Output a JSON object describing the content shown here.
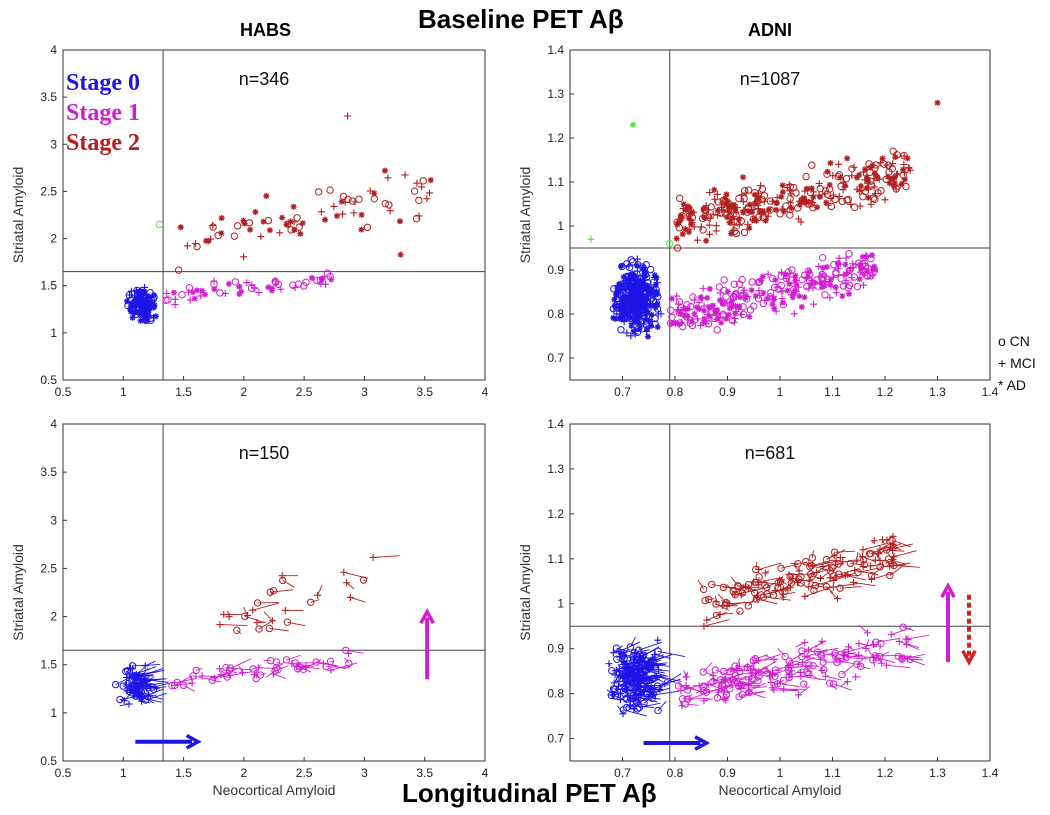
{
  "figure": {
    "top_title": "Baseline PET Aβ",
    "bottom_title": "Longitudinal PET Aβ",
    "column_titles": [
      "HABS",
      "ADNI"
    ]
  },
  "stage_legend": [
    {
      "label": "Stage 0",
      "color": "#1e14e6"
    },
    {
      "label": "Stage 1",
      "color": "#d21ed2"
    },
    {
      "label": "Stage 2",
      "color": "#b41e1e"
    }
  ],
  "diagnosis_legend": [
    "o CN",
    "+ MCI",
    "*  AD"
  ],
  "colors": {
    "stage0": "#1e14e6",
    "stage1": "#d21ed2",
    "stage2": "#b41e1e",
    "excluded": "#5ce04a",
    "threshold": "#444444"
  },
  "chart_data": [
    {
      "id": "habs_baseline",
      "type": "scatter",
      "annotation": "n=346",
      "xlabel": "",
      "ylabel": "Striatal Amyloid",
      "xlim": [
        0.5,
        4
      ],
      "ylim": [
        0.5,
        4
      ],
      "xticks": [
        0.5,
        1,
        1.5,
        2,
        2.5,
        3,
        3.5,
        4
      ],
      "yticks": [
        0.5,
        1,
        1.5,
        2,
        2.5,
        3,
        3.5,
        4
      ],
      "thresholds": {
        "x": 1.33,
        "y": 1.65
      },
      "series": [
        {
          "name": "Stage 0",
          "cluster": {
            "cx": [
              1.0,
              1.32
            ],
            "cy": [
              1.05,
              1.55
            ],
            "count": 150
          }
        },
        {
          "name": "Stage 1",
          "cluster": {
            "cx": [
              1.35,
              2.75
            ],
            "cy": [
              1.3,
              1.65
            ],
            "count": 55
          }
        },
        {
          "name": "Stage 2",
          "cluster": {
            "cx": [
              1.45,
              3.55
            ],
            "cy": [
              1.65,
              2.75
            ],
            "count": 75
          }
        }
      ],
      "points": [
        {
          "x": 2.86,
          "y": 3.3,
          "marker": "+",
          "series": "Stage 2"
        },
        {
          "x": 1.3,
          "y": 2.15,
          "marker": "o",
          "series": "Excluded"
        },
        {
          "x": 3.55,
          "y": 2.62,
          "marker": "*",
          "series": "Stage 2"
        },
        {
          "x": 3.17,
          "y": 2.72,
          "marker": "*",
          "series": "Stage 2"
        },
        {
          "x": 3.3,
          "y": 1.83,
          "marker": "*",
          "series": "Stage 2"
        }
      ]
    },
    {
      "id": "adni_baseline",
      "type": "scatter",
      "annotation": "n=1087",
      "xlabel": "",
      "ylabel": "Striatal Amyloid",
      "xlim": [
        0.6,
        1.4
      ],
      "ylim": [
        0.65,
        1.4
      ],
      "xticks": [
        0.7,
        0.8,
        0.9,
        1,
        1.1,
        1.2,
        1.3,
        1.4
      ],
      "yticks": [
        0.7,
        0.8,
        0.9,
        1,
        1.1,
        1.2,
        1.3,
        1.4
      ],
      "thresholds": {
        "x": 0.79,
        "y": 0.95
      },
      "series": [
        {
          "name": "Stage 0",
          "cluster": {
            "cx": [
              0.66,
              0.79
            ],
            "cy": [
              0.72,
              0.95
            ],
            "count": 380
          }
        },
        {
          "name": "Stage 1",
          "cluster": {
            "cx": [
              0.79,
              1.18
            ],
            "cy": [
              0.74,
              0.95
            ],
            "count": 280
          }
        },
        {
          "name": "Stage 2",
          "cluster": {
            "cx": [
              0.8,
              1.25
            ],
            "cy": [
              0.95,
              1.17
            ],
            "count": 320
          }
        }
      ],
      "points": [
        {
          "x": 1.3,
          "y": 1.28,
          "marker": "*",
          "series": "Stage 2"
        },
        {
          "x": 0.72,
          "y": 1.23,
          "marker": "*",
          "series": "Excluded"
        },
        {
          "x": 0.64,
          "y": 0.97,
          "marker": "+",
          "series": "Excluded"
        },
        {
          "x": 0.79,
          "y": 0.96,
          "marker": "o",
          "series": "Excluded"
        }
      ]
    },
    {
      "id": "habs_longitudinal",
      "type": "line",
      "annotation": "n=150",
      "xlabel": "Neocortical Amyloid",
      "ylabel": "Striatal Amyloid",
      "xlim": [
        0.5,
        4
      ],
      "ylim": [
        0.5,
        4
      ],
      "xticks": [
        0.5,
        1,
        1.5,
        2,
        2.5,
        3,
        3.5,
        4
      ],
      "yticks": [
        0.5,
        1,
        1.5,
        2,
        2.5,
        3,
        3.5,
        4
      ],
      "thresholds": {
        "x": 1.33,
        "y": 1.65
      },
      "series": [
        {
          "name": "Stage 0",
          "cluster": {
            "cx": [
              0.9,
              1.32
            ],
            "cy": [
              1.0,
              1.55
            ],
            "count": 70
          }
        },
        {
          "name": "Stage 1",
          "cluster": {
            "cx": [
              1.4,
              2.9
            ],
            "cy": [
              1.2,
              1.65
            ],
            "count": 45
          }
        },
        {
          "name": "Stage 2",
          "cluster": {
            "cx": [
              1.8,
              3.1
            ],
            "cy": [
              1.7,
              2.7
            ],
            "count": 25
          }
        }
      ],
      "arrows": [
        {
          "from": [
            1.1,
            0.7
          ],
          "to": [
            1.62,
            0.7
          ],
          "color": "#1e14e6",
          "dashed": false
        },
        {
          "from": [
            3.52,
            1.35
          ],
          "to": [
            3.52,
            2.05
          ],
          "color": "#d21ed2",
          "dashed": false
        }
      ]
    },
    {
      "id": "adni_longitudinal",
      "type": "line",
      "annotation": "n=681",
      "xlabel": "Neocortical Amyloid",
      "ylabel": "Striatal Amyloid",
      "xlim": [
        0.6,
        1.4
      ],
      "ylim": [
        0.65,
        1.4
      ],
      "xticks": [
        0.7,
        0.8,
        0.9,
        1,
        1.1,
        1.2,
        1.3,
        1.4
      ],
      "yticks": [
        0.7,
        0.8,
        0.9,
        1,
        1.1,
        1.2,
        1.3,
        1.4
      ],
      "thresholds": {
        "x": 0.79,
        "y": 0.95
      },
      "series": [
        {
          "name": "Stage 0",
          "cluster": {
            "cx": [
              0.65,
              0.8
            ],
            "cy": [
              0.72,
              0.95
            ],
            "count": 200
          }
        },
        {
          "name": "Stage 1",
          "cluster": {
            "cx": [
              0.8,
              1.25
            ],
            "cy": [
              0.75,
              0.95
            ],
            "count": 160
          }
        },
        {
          "name": "Stage 2",
          "cluster": {
            "cx": [
              0.85,
              1.22
            ],
            "cy": [
              0.95,
              1.15
            ],
            "count": 140
          }
        }
      ],
      "arrows": [
        {
          "from": [
            0.74,
            0.69
          ],
          "to": [
            0.86,
            0.69
          ],
          "color": "#1e14e6",
          "dashed": false
        },
        {
          "from": [
            1.32,
            0.87
          ],
          "to": [
            1.32,
            1.04
          ],
          "color": "#d21ed2",
          "dashed": false
        },
        {
          "from": [
            1.36,
            1.02
          ],
          "to": [
            1.36,
            0.87
          ],
          "color": "#d42020",
          "dashed": true
        }
      ]
    }
  ]
}
